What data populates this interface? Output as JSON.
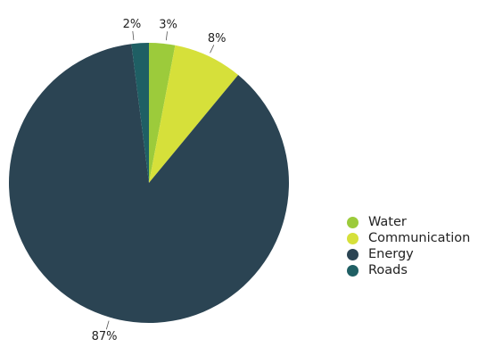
{
  "chart_data": {
    "type": "pie",
    "slices": [
      {
        "name": "Water",
        "value": 3,
        "label": "3%",
        "color": "#9ccb3b"
      },
      {
        "name": "Communication",
        "value": 8,
        "label": "8%",
        "color": "#d6e03a"
      },
      {
        "name": "Energy",
        "value": 87,
        "label": "87%",
        "color": "#2b4453"
      },
      {
        "name": "Roads",
        "value": 2,
        "label": "2%",
        "color": "#1f5f64"
      }
    ],
    "legend_position": "right",
    "legend": [
      "Water",
      "Communication",
      "Energy",
      "Roads"
    ]
  }
}
